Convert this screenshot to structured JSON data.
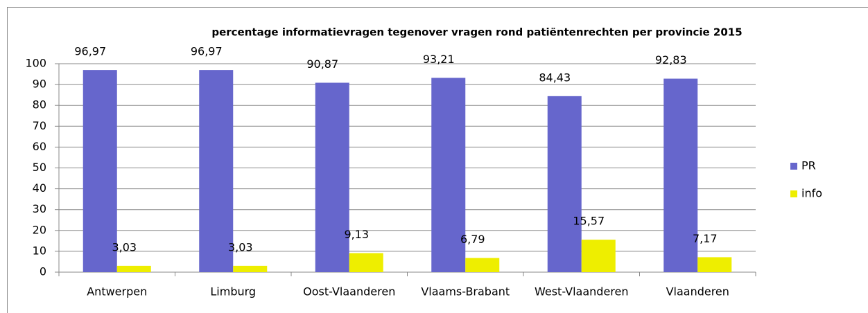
{
  "chart_data": {
    "type": "bar",
    "title": "percentage informatievragen tegenover vragen rond patiëntenrechten per provincie 2015",
    "categories": [
      "Antwerpen",
      "Limburg",
      "Oost-Vlaanderen",
      "Vlaams-Brabant",
      "West-Vlaanderen",
      "Vlaanderen"
    ],
    "series": [
      {
        "name": "PR",
        "color": "#6666cc",
        "values": [
          96.97,
          96.97,
          90.87,
          93.21,
          84.43,
          92.83
        ],
        "value_labels": [
          "96,97",
          "96,97",
          "90,87",
          "93,21",
          "84,43",
          "92,83"
        ]
      },
      {
        "name": "info",
        "color": "#eeee00",
        "values": [
          3.03,
          3.03,
          9.13,
          6.79,
          15.57,
          7.17
        ],
        "value_labels": [
          "3,03",
          "3,03",
          "9,13",
          "6,79",
          "15,57",
          "7,17"
        ]
      }
    ],
    "ylim": [
      0,
      100
    ],
    "yticks": [
      0,
      10,
      20,
      30,
      40,
      50,
      60,
      70,
      80,
      90,
      100
    ],
    "grid": true,
    "legend": "right"
  }
}
